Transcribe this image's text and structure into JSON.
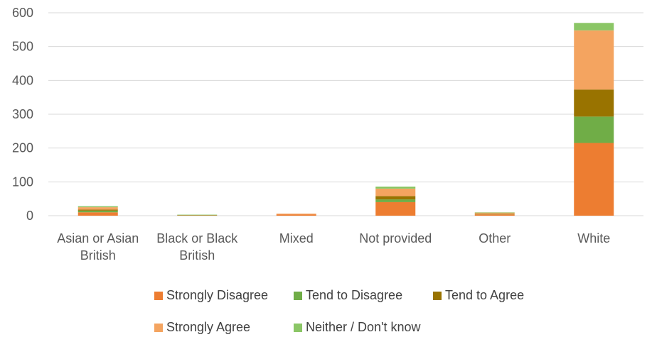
{
  "chart_data": {
    "type": "bar",
    "stacked": true,
    "categories": [
      [
        "Asian or Asian",
        "British"
      ],
      [
        "Black or Black",
        "British"
      ],
      [
        "Mixed"
      ],
      [
        "Not provided"
      ],
      [
        "Other"
      ],
      [
        "White"
      ]
    ],
    "series": [
      {
        "name": "Strongly Disagree",
        "color": "#ED7D31",
        "values": [
          10,
          1,
          4,
          40,
          4,
          215
        ]
      },
      {
        "name": "Tend to Disagree",
        "color": "#70AD47",
        "values": [
          5,
          1,
          0,
          8,
          1,
          78
        ]
      },
      {
        "name": "Tend to Agree",
        "color": "#997300",
        "values": [
          3,
          0,
          0,
          10,
          1,
          80
        ]
      },
      {
        "name": "Strongly Agree",
        "color": "#F4A460",
        "values": [
          7,
          0,
          2,
          22,
          3,
          175
        ]
      },
      {
        "name": "Neither / Don't know",
        "color": "#8BC666",
        "values": [
          3,
          1,
          0,
          6,
          1,
          22
        ]
      }
    ],
    "ylim": [
      0,
      600
    ],
    "yticks": [
      0,
      100,
      200,
      300,
      400,
      500,
      600
    ],
    "grid": true,
    "legend_position": "bottom"
  }
}
